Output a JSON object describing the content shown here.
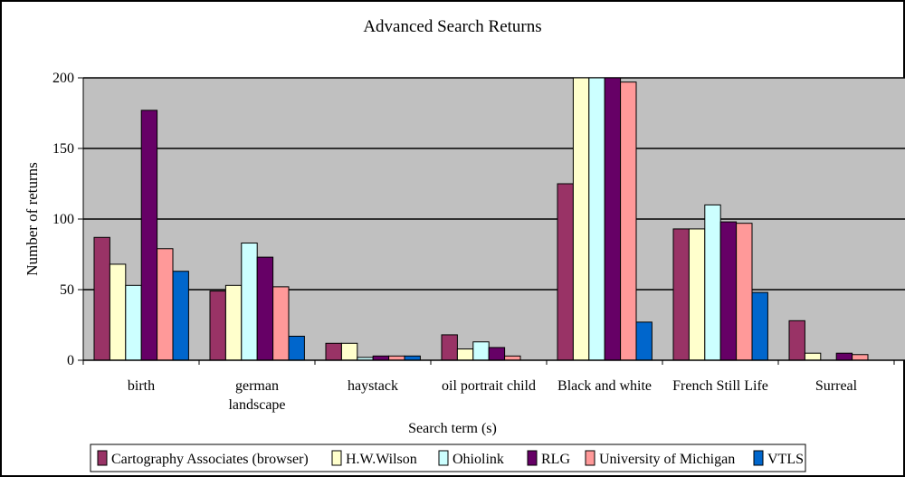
{
  "chart_data": {
    "type": "bar",
    "title": "Advanced Search Returns",
    "xlabel": "Search term (s)",
    "ylabel": "Number of returns",
    "ylim": [
      0,
      200
    ],
    "yticks": [
      0,
      50,
      100,
      150,
      200
    ],
    "grid": true,
    "legend_position": "bottom",
    "plot_background": "#c0c0c0",
    "categories": [
      [
        "birth"
      ],
      [
        "german",
        "landscape"
      ],
      [
        "haystack"
      ],
      [
        "oil portrait child"
      ],
      [
        "Black and white"
      ],
      [
        "French Still Life"
      ],
      [
        "Surreal"
      ]
    ],
    "series": [
      {
        "name": "Cartography Associates (browser)",
        "color": "#993366",
        "values": [
          87,
          49,
          12,
          18,
          125,
          93,
          28
        ]
      },
      {
        "name": "H.W.Wilson",
        "color": "#ffffcc",
        "values": [
          68,
          53,
          12,
          8,
          200,
          93,
          5
        ]
      },
      {
        "name": "Ohiolink",
        "color": "#ccffff",
        "values": [
          53,
          83,
          2,
          13,
          200,
          110,
          0
        ]
      },
      {
        "name": "RLG",
        "color": "#660066",
        "values": [
          177,
          73,
          3,
          9,
          200,
          98,
          5
        ]
      },
      {
        "name": "University of Michigan",
        "color": "#ff9999",
        "values": [
          79,
          52,
          3,
          3,
          197,
          97,
          4
        ]
      },
      {
        "name": "VTLS",
        "color": "#0066cc",
        "values": [
          63,
          17,
          3,
          0,
          27,
          48,
          0
        ]
      }
    ]
  }
}
